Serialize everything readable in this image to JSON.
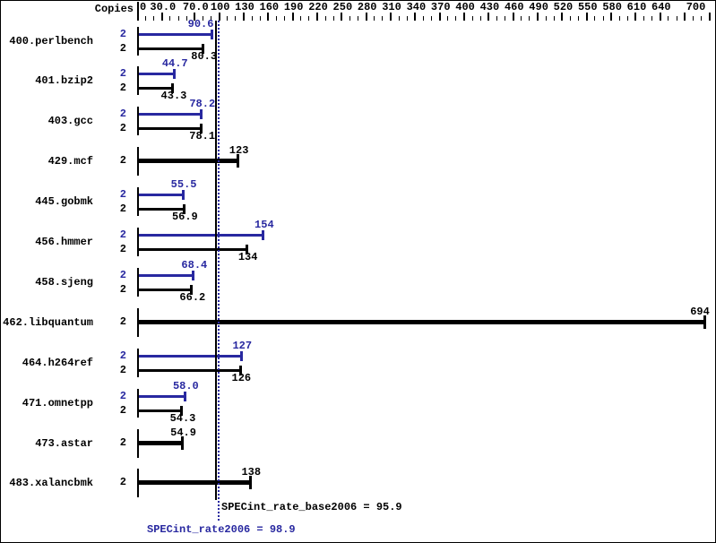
{
  "header": {
    "copies_label": "Copies"
  },
  "colors": {
    "peak": "#2828a0",
    "base": "#000000",
    "background": "#ffffff"
  },
  "chart_data": {
    "type": "bar",
    "orientation": "horizontal",
    "xlim": [
      0,
      700
    ],
    "grid": false,
    "minor_tick_step": 10,
    "major_ticks": [
      30,
      70,
      100,
      130,
      160,
      190,
      220,
      250,
      280,
      310,
      340,
      370,
      400,
      430,
      460,
      490,
      520,
      550,
      580,
      610,
      640,
      670,
      700
    ],
    "axis_labels": [
      {
        "value": 0,
        "text": "0",
        "align": "left"
      },
      {
        "value": 30,
        "text": "30.0"
      },
      {
        "value": 70,
        "text": "70.0"
      },
      {
        "value": 100,
        "text": "100"
      },
      {
        "value": 130,
        "text": "130"
      },
      {
        "value": 160,
        "text": "160"
      },
      {
        "value": 190,
        "text": "190"
      },
      {
        "value": 220,
        "text": "220"
      },
      {
        "value": 250,
        "text": "250"
      },
      {
        "value": 280,
        "text": "280"
      },
      {
        "value": 310,
        "text": "310"
      },
      {
        "value": 340,
        "text": "340"
      },
      {
        "value": 370,
        "text": "370"
      },
      {
        "value": 400,
        "text": "400"
      },
      {
        "value": 430,
        "text": "430"
      },
      {
        "value": 460,
        "text": "460"
      },
      {
        "value": 490,
        "text": "490"
      },
      {
        "value": 520,
        "text": "520"
      },
      {
        "value": 550,
        "text": "550"
      },
      {
        "value": 580,
        "text": "580"
      },
      {
        "value": 610,
        "text": "610"
      },
      {
        "value": 640,
        "text": "640"
      },
      {
        "value": 700,
        "text": "700",
        "shift": -16
      }
    ],
    "benchmarks": [
      {
        "name": "400.perlbench",
        "copies": 2,
        "peak": 90.6,
        "peak_text": "90.6",
        "peak_label_shift": -13,
        "base": 80.3,
        "base_text": "80.3"
      },
      {
        "name": "401.bzip2",
        "copies": 2,
        "peak": 44.7,
        "peak_text": "44.7",
        "base": 43.3,
        "base_text": "43.3"
      },
      {
        "name": "403.gcc",
        "copies": 2,
        "peak": 78.2,
        "peak_text": "78.2",
        "base": 78.1,
        "base_text": "78.1"
      },
      {
        "name": "429.mcf",
        "copies": 2,
        "base": 123,
        "base_text": "123",
        "base_only": true
      },
      {
        "name": "445.gobmk",
        "copies": 2,
        "peak": 55.5,
        "peak_text": "55.5",
        "base": 56.9,
        "base_text": "56.9"
      },
      {
        "name": "456.hmmer",
        "copies": 2,
        "peak": 154,
        "peak_text": "154",
        "base": 134,
        "base_text": "134"
      },
      {
        "name": "458.sjeng",
        "copies": 2,
        "peak": 68.4,
        "peak_text": "68.4",
        "base": 66.2,
        "base_text": "66.2"
      },
      {
        "name": "462.libquantum",
        "copies": 2,
        "base": 694,
        "base_text": "694",
        "base_only": true,
        "base_label_shift": -6
      },
      {
        "name": "464.h264ref",
        "copies": 2,
        "peak": 127,
        "peak_text": "127",
        "base": 126,
        "base_text": "126"
      },
      {
        "name": "471.omnetpp",
        "copies": 2,
        "peak": 58.0,
        "peak_text": "58.0",
        "base": 54.3,
        "base_text": "54.3"
      },
      {
        "name": "473.astar",
        "copies": 2,
        "base": 54.9,
        "base_text": "54.9",
        "base_only": true
      },
      {
        "name": "483.xalancbmk",
        "copies": 2,
        "base": 138,
        "base_text": "138",
        "base_only": true
      }
    ],
    "reference_lines": [
      {
        "metric": "SPECint_rate_base2006",
        "value": 95.9,
        "text": "SPECint_rate_base2006 = 95.9",
        "color_role": "base",
        "style": "solid"
      },
      {
        "metric": "SPECint_rate2006",
        "value": 98.9,
        "text": "SPECint_rate2006 = 98.9",
        "color_role": "peak",
        "style": "dotted"
      }
    ]
  }
}
